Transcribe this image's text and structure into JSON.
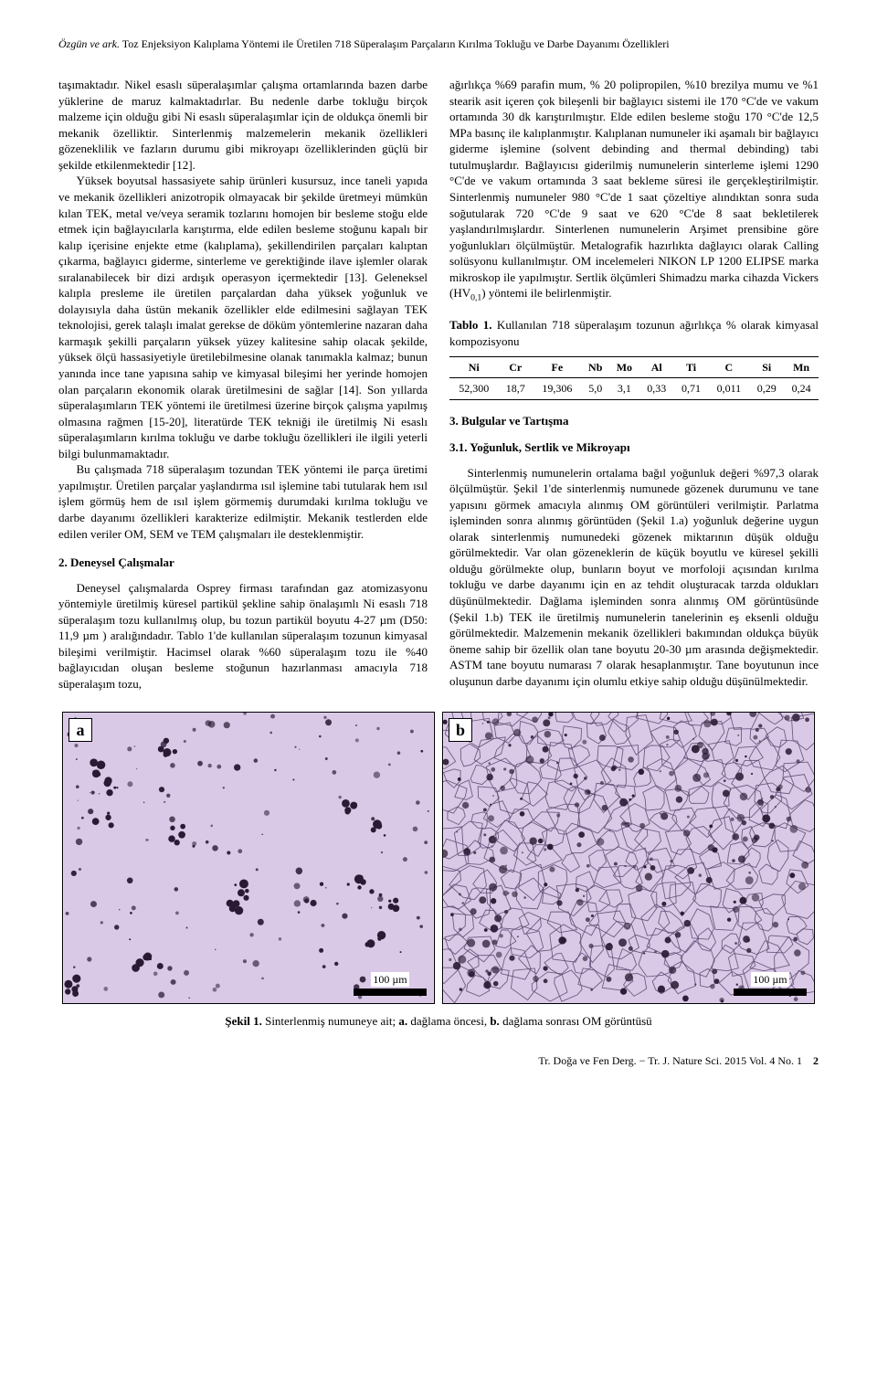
{
  "running_head": {
    "authors": "Özgün ve ark.",
    "title": " Toz Enjeksiyon Kalıplama Yöntemi ile Üretilen 718 Süperalaşım Parçaların Kırılma Tokluğu ve Darbe Dayanımı Özellikleri"
  },
  "left_column": {
    "p1": "taşımaktadır. Nikel esaslı süperalaşımlar çalışma ortamlarında bazen darbe yüklerine de maruz kalmaktadırlar. Bu nedenle darbe tokluğu birçok malzeme için olduğu gibi Ni esaslı süperalaşımlar için de oldukça önemli bir mekanik özelliktir. Sinterlenmiş malzemelerin mekanik özellikleri gözeneklilik ve fazların durumu gibi mikroyapı özelliklerinden güçlü bir şekilde etkilenmektedir [12].",
    "p2": "Yüksek boyutsal hassasiyete sahip ürünleri kusursuz, ince taneli yapıda ve mekanik özellikleri anizotropik olmayacak bir şekilde üretmeyi mümkün kılan TEK, metal ve/veya seramik tozlarını homojen bir besleme stoğu elde etmek için bağlayıcılarla karıştırma, elde edilen besleme stoğunu kapalı bir kalıp içerisine enjekte etme (kalıplama), şekillendirilen parçaları kalıptan çıkarma, bağlayıcı giderme, sinterleme ve gerektiğinde ilave işlemler olarak sıralanabilecek bir dizi ardışık operasyon içermektedir [13]. Geleneksel kalıpla presleme ile üretilen parçalardan daha yüksek yoğunluk ve dolayısıyla daha üstün mekanik özellikler elde edilmesini sağlayan TEK teknolojisi, gerek talaşlı imalat gerekse de döküm yöntemlerine nazaran daha karmaşık şekilli parçaların yüksek yüzey kalitesine sahip olacak şekilde, yüksek ölçü hassasiyetiyle üretilebilmesine olanak tanımakla kalmaz; bunun yanında ince tane yapısına sahip ve kimyasal bileşimi her yerinde homojen olan parçaların ekonomik olarak üretilmesini de sağlar [14]. Son yıllarda süperalaşımların TEK yöntemi ile üretilmesi üzerine birçok çalışma yapılmış olmasına rağmen [15-20], literatürde TEK tekniği ile üretilmiş Ni esaslı süperalaşımların kırılma tokluğu ve darbe tokluğu özellikleri ile ilgili yeterli bilgi bulunmamaktadır.",
    "p3": "Bu çalışmada 718 süperalaşım tozundan TEK yöntemi ile parça üretimi yapılmıştır. Üretilen parçalar yaşlandırma ısıl işlemine tabi tutularak hem ısıl işlem görmüş hem de ısıl işlem görmemiş durumdaki kırılma tokluğu ve darbe dayanımı özellikleri karakterize edilmiştir. Mekanik testlerden elde edilen veriler OM, SEM ve TEM çalışmaları ile desteklenmiştir.",
    "h2": "2. Deneysel Çalışmalar",
    "p4": "Deneysel çalışmalarda Osprey firması tarafından gaz atomizasyonu yöntemiyle üretilmiş küresel partikül şekline sahip önalaşımlı Ni esaslı 718 süperalaşım tozu kullanılmış olup, bu tozun partikül boyutu 4-27 µm (D50: 11,9 µm ) aralığındadır. Tablo 1'de kullanılan süperalaşım tozunun kimyasal bileşimi verilmiştir. Hacimsel olarak %60 süperalaşım tozu ile %40 bağlayıcıdan oluşan besleme stoğunun hazırlanması amacıyla 718 süperalaşım tozu, "
  },
  "right_column": {
    "p1a": "ağırlıkça %69 parafin mum, % 20 polipropilen, %10 brezilya mumu ve %1 stearik asit içeren çok bileşenli bir bağlayıcı sistemi ile 170 °C'de ve vakum ortamında 30 dk karıştırılmıştır. Elde edilen besleme stoğu 170 °C'de 12,5 MPa basınç ile kalıplanmıştır. Kalıplanan numuneler iki aşamalı bir bağlayıcı giderme işlemine (solvent debinding and thermal debinding) tabi tutulmuşlardır. Bağlayıcısı giderilmiş numunelerin sinterleme işlemi 1290 °C'de ve vakum ortamında 3 saat bekleme süresi ile gerçekleştirilmiştir. Sinterlenmiş numuneler 980 °C'de 1 saat çözeltiye alındıktan sonra suda soğutularak 720 °C'de 9 saat ve 620 °C'de 8 saat bekletilerek yaşlandırılmışlardır. Sinterlenen numunelerin Arşimet prensibine göre yoğunlukları ölçülmüştür. Metalografik hazırlıkta dağlayıcı olarak Calling solüsyonu kullanılmıştır. OM incelemeleri NIKON LP 1200 ELIPSE marka mikroskop ile yapılmıştır. Sertlik ölçümleri Shimadzu marka cihazda Vickers (HV",
    "p1_sub": "0,1",
    "p1b": ") yöntemi ile belirlenmiştir.",
    "table_caption_bold": "Tablo 1.",
    "table_caption_rest": " Kullanılan 718 süperalaşım tozunun ağırlıkça % olarak kimyasal kompozisyonu",
    "table": {
      "headers": [
        "Ni",
        "Cr",
        "Fe",
        "Nb",
        "Mo",
        "Al",
        "Ti",
        "C",
        "Si",
        "Mn"
      ],
      "row": [
        "52,300",
        "18,7",
        "19,306",
        "5,0",
        "3,1",
        "0,33",
        "0,71",
        "0,011",
        "0,29",
        "0,24"
      ]
    },
    "h3": "3. Bulgular ve Tartışma",
    "h31": "3.1. Yoğunluk, Sertlik ve Mikroyapı",
    "p2": "Sinterlenmiş numunelerin ortalama bağıl yoğunluk değeri %97,3 olarak ölçülmüştür. Şekil 1'de sinterlenmiş numunede gözenek durumunu ve tane yapısını görmek amacıyla alınmış OM görüntüleri verilmiştir. Parlatma işleminden sonra alınmış görüntüden (Şekil 1.a) yoğunluk değerine uygun olarak sinterlenmiş numunedeki gözenek miktarının düşük olduğu görülmektedir. Var olan gözeneklerin de küçük boyutlu ve küresel şekilli olduğu görülmekte olup, bunların boyut ve morfoloji açısından kırılma tokluğu ve darbe dayanımı için en az tehdit oluşturacak tarzda oldukları düşünülmektedir. Dağlama işleminden sonra alınmış OM görüntüsünde (Şekil 1.b) TEK ile üretilmiş numunelerin tanelerinin eş eksenli olduğu görülmektedir. Malzemenin mekanik özellikleri bakımından oldukça büyük öneme sahip bir özellik olan tane boyutu 20-30 µm arasında değişmektedir. ASTM tane boyutu numarası 7 olarak hesaplanmıştır. Tane boyutunun ince oluşunun darbe dayanımı için olumlu etkiye sahip olduğu düşünülmektedir."
  },
  "figure": {
    "panel_a": "a",
    "panel_b": "b",
    "scale_label": "100 µm",
    "caption_bold": "Şekil 1.",
    "caption_rest_1": " Sinterlenmiş numuneye ait; ",
    "caption_a": "a.",
    "caption_rest_2": " dağlama öncesi, ",
    "caption_b": "b.",
    "caption_rest_3": " dağlama sonrası OM görüntüsü",
    "micrograph_style": {
      "bg_color": "#d9c9e6",
      "pore_color": "#2a1a33",
      "grain_stroke": "#5c4870"
    }
  },
  "footer": {
    "text": "Tr. Doğa ve Fen Derg. − Tr. J. Nature Sci.     2015     Vol. 4     No. 1",
    "page": "2"
  }
}
